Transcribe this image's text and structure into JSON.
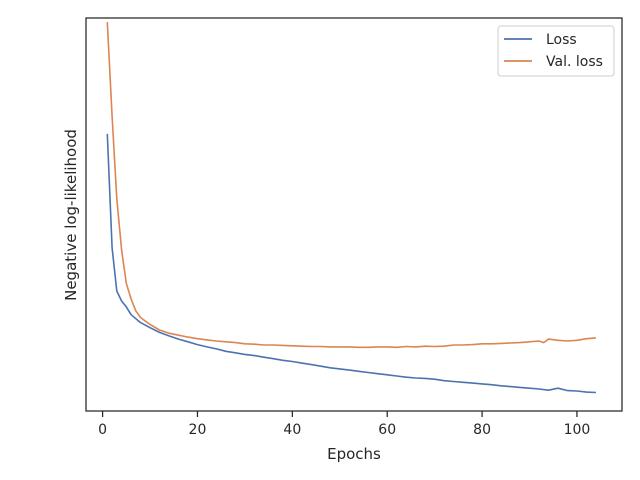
{
  "chart_data": {
    "type": "line",
    "xlabel": "Epochs",
    "ylabel": "Negative log-likelihood",
    "xlim": [
      -3.5,
      109.5
    ],
    "ylim": [
      0,
      1
    ],
    "x_ticks": [
      0,
      20,
      40,
      60,
      80,
      100
    ],
    "y_ticks_shown": false,
    "grid": false,
    "legend": "top-right",
    "series": [
      {
        "name": "Loss",
        "color": "#4c72b0",
        "x": [
          1,
          2,
          3,
          4,
          5,
          6,
          8,
          10,
          12,
          14,
          16,
          18,
          20,
          22,
          24,
          26,
          28,
          30,
          32,
          34,
          36,
          38,
          40,
          42,
          44,
          46,
          48,
          50,
          52,
          54,
          56,
          58,
          60,
          62,
          64,
          66,
          68,
          70,
          72,
          74,
          76,
          78,
          80,
          82,
          84,
          86,
          88,
          90,
          92,
          94,
          96,
          98,
          100,
          102,
          104
        ],
        "values": [
          0.705,
          0.415,
          0.305,
          0.28,
          0.265,
          0.245,
          0.225,
          0.212,
          0.2,
          0.191,
          0.183,
          0.176,
          0.169,
          0.163,
          0.158,
          0.152,
          0.148,
          0.144,
          0.141,
          0.137,
          0.133,
          0.129,
          0.126,
          0.122,
          0.118,
          0.114,
          0.11,
          0.107,
          0.104,
          0.101,
          0.098,
          0.095,
          0.092,
          0.089,
          0.086,
          0.084,
          0.083,
          0.081,
          0.077,
          0.075,
          0.073,
          0.071,
          0.069,
          0.067,
          0.064,
          0.062,
          0.06,
          0.058,
          0.056,
          0.053,
          0.058,
          0.052,
          0.051,
          0.048,
          0.047
        ]
      },
      {
        "name": "Val. loss",
        "color": "#dd8452",
        "x": [
          1,
          2,
          3,
          4,
          5,
          6,
          7,
          8,
          10,
          12,
          14,
          16,
          18,
          20,
          22,
          24,
          26,
          28,
          30,
          32,
          34,
          36,
          38,
          40,
          42,
          44,
          46,
          48,
          50,
          52,
          54,
          56,
          58,
          60,
          62,
          64,
          66,
          68,
          70,
          72,
          74,
          76,
          78,
          80,
          82,
          84,
          86,
          88,
          90,
          92,
          93,
          94,
          96,
          98,
          100,
          102,
          104
        ],
        "values": [
          0.99,
          0.75,
          0.54,
          0.41,
          0.325,
          0.285,
          0.255,
          0.238,
          0.22,
          0.206,
          0.198,
          0.193,
          0.188,
          0.184,
          0.181,
          0.178,
          0.176,
          0.174,
          0.171,
          0.17,
          0.168,
          0.168,
          0.167,
          0.166,
          0.165,
          0.164,
          0.164,
          0.163,
          0.163,
          0.163,
          0.162,
          0.162,
          0.163,
          0.163,
          0.162,
          0.164,
          0.163,
          0.165,
          0.164,
          0.165,
          0.168,
          0.168,
          0.169,
          0.171,
          0.171,
          0.172,
          0.173,
          0.174,
          0.176,
          0.178,
          0.174,
          0.183,
          0.18,
          0.178,
          0.18,
          0.184,
          0.186
        ]
      }
    ]
  }
}
